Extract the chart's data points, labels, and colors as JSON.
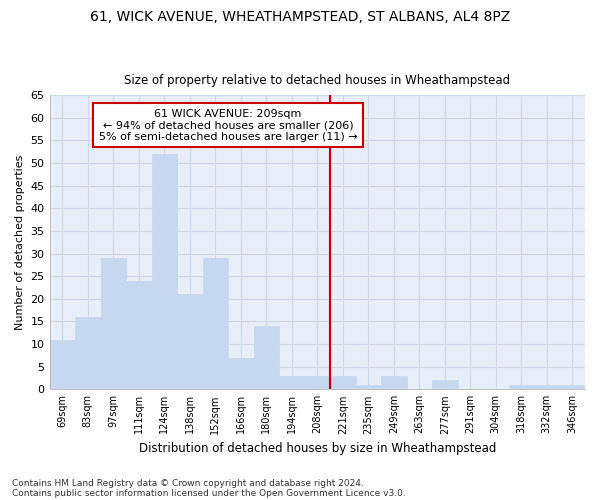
{
  "title1": "61, WICK AVENUE, WHEATHAMPSTEAD, ST ALBANS, AL4 8PZ",
  "title2": "Size of property relative to detached houses in Wheathampstead",
  "xlabel": "Distribution of detached houses by size in Wheathampstead",
  "ylabel": "Number of detached properties",
  "footnote1": "Contains HM Land Registry data © Crown copyright and database right 2024.",
  "footnote2": "Contains public sector information licensed under the Open Government Licence v3.0.",
  "categories": [
    "69sqm",
    "83sqm",
    "97sqm",
    "111sqm",
    "124sqm",
    "138sqm",
    "152sqm",
    "166sqm",
    "180sqm",
    "194sqm",
    "208sqm",
    "221sqm",
    "235sqm",
    "249sqm",
    "263sqm",
    "277sqm",
    "291sqm",
    "304sqm",
    "318sqm",
    "332sqm",
    "346sqm"
  ],
  "values": [
    11,
    16,
    29,
    24,
    52,
    21,
    29,
    7,
    14,
    3,
    3,
    3,
    1,
    3,
    0,
    2,
    0,
    0,
    1,
    1,
    1
  ],
  "bar_color": "#c5d8f0",
  "bar_edge_color": "#c5d8f0",
  "background_color": "#ffffff",
  "grid_color": "#d0d8e8",
  "ax_background": "#e8eef8",
  "property_label": "61 WICK AVENUE: 209sqm",
  "annotation_line1": "← 94% of detached houses are smaller (206)",
  "annotation_line2": "5% of semi-detached houses are larger (11) →",
  "vline_x_index": 10.5,
  "vline_color": "#cc0000",
  "annotation_box_color": "#ffffff",
  "annotation_box_edge": "#cc0000",
  "ylim": [
    0,
    65
  ],
  "yticks": [
    0,
    5,
    10,
    15,
    20,
    25,
    30,
    35,
    40,
    45,
    50,
    55,
    60,
    65
  ]
}
